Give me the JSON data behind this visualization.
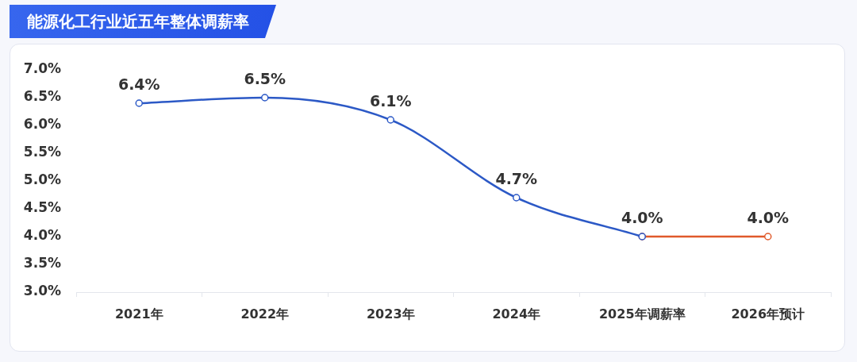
{
  "chart_data": {
    "type": "line",
    "title": "能源化工行业近五年整体调薪率",
    "categories": [
      "2021年",
      "2022年",
      "2023年",
      "2024年",
      "2025年调薪率",
      "2026年预计"
    ],
    "series": [
      {
        "color": "#2c59c6",
        "values": [
          6.4,
          6.5,
          6.1,
          4.7,
          4.0,
          null
        ],
        "value_labels": [
          "6.4%",
          "6.5%",
          "6.1%",
          "4.7%",
          "4.0%",
          null
        ]
      },
      {
        "color": "#e05a2b",
        "values": [
          null,
          null,
          null,
          null,
          4.0,
          4.0
        ],
        "value_labels": [
          null,
          null,
          null,
          null,
          null,
          "4.0%"
        ]
      }
    ],
    "ylim": [
      3,
      7
    ],
    "yticks": [
      {
        "value": 3,
        "label": "3.0%"
      },
      {
        "value": 3.5,
        "label": "3.5%"
      },
      {
        "value": 4,
        "label": "4.0%"
      },
      {
        "value": 4.5,
        "label": "4.5%"
      },
      {
        "value": 5,
        "label": "5.0%"
      },
      {
        "value": 5.5,
        "label": "5.5%"
      },
      {
        "value": 6,
        "label": "6.0%"
      },
      {
        "value": 6.5,
        "label": "6.5%"
      },
      {
        "value": 7,
        "label": "7.0%"
      }
    ],
    "marker": "circle",
    "line_style": "solid"
  }
}
